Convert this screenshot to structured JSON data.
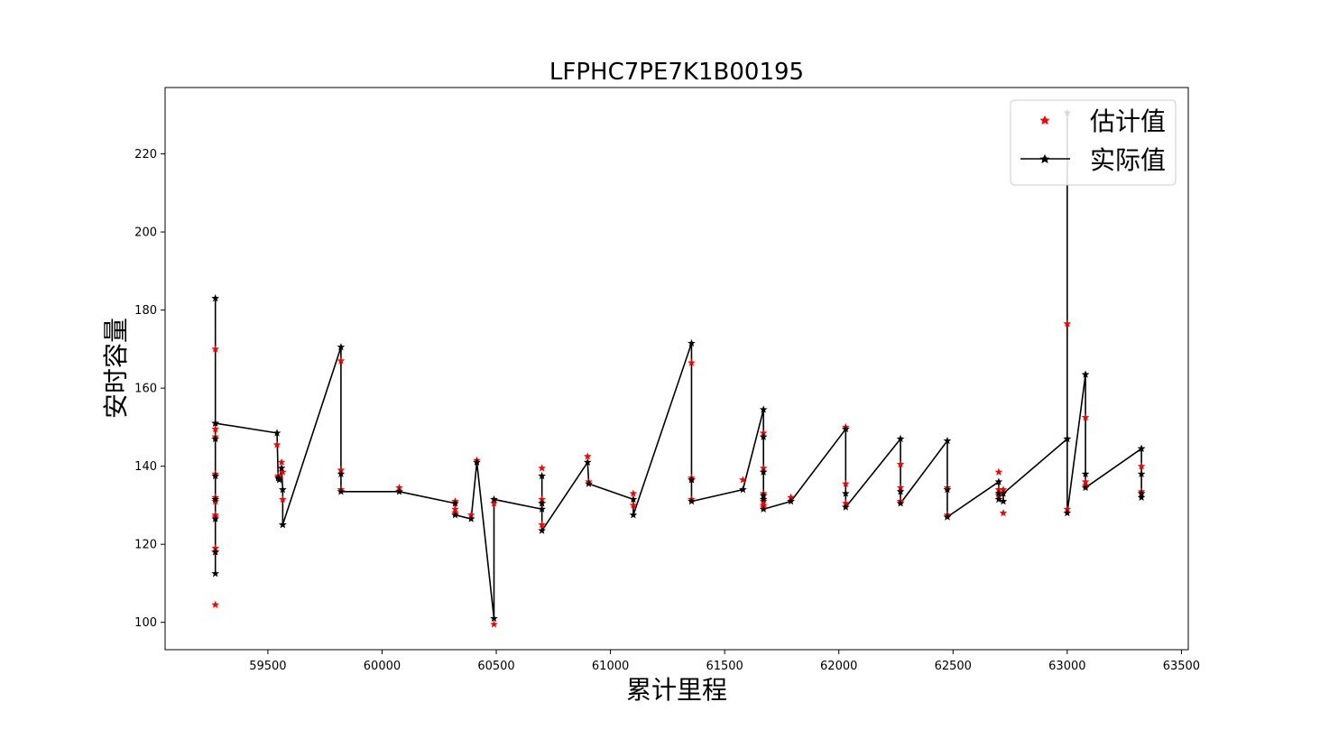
{
  "chart_data": {
    "type": "line",
    "title": "LFPHC7PE7K1B00195",
    "xlabel": "累计里程",
    "ylabel": "安时容量",
    "xlim": [
      59050,
      63530
    ],
    "ylim": [
      93,
      237
    ],
    "xticks": [
      59500,
      60000,
      60500,
      61000,
      61500,
      62000,
      62500,
      63000,
      63500
    ],
    "yticks": [
      100,
      120,
      140,
      160,
      180,
      200,
      220
    ],
    "grid": false,
    "legend": {
      "placement": "top-right",
      "entries": [
        "估计值",
        "实际值"
      ]
    },
    "colors": {
      "estimate": "#ff0000",
      "actual": "#000000"
    },
    "series": [
      {
        "name": "估计值",
        "style": "marker-only",
        "x": [
          59270,
          59270,
          59270,
          59270,
          59270,
          59270,
          59270,
          59270,
          59270,
          59270,
          59270,
          59540,
          59545,
          59550,
          59560,
          59565,
          59565,
          59565,
          59820,
          59820,
          59820,
          60075,
          60320,
          60320,
          60320,
          60390,
          60415,
          60490,
          60490,
          60700,
          60700,
          60700,
          60700,
          60900,
          60905,
          61100,
          61100,
          61355,
          61355,
          61355,
          61355,
          61580,
          61670,
          61670,
          61670,
          61670,
          61670,
          61670,
          61790,
          62030,
          62030,
          62030,
          62270,
          62270,
          62270,
          62475,
          62475,
          62475,
          62700,
          62700,
          62700,
          62720,
          62720,
          63000,
          63000,
          63000,
          63080,
          63080,
          63080,
          63325,
          63325,
          63325,
          63325
        ],
        "y": [
          170,
          149.5,
          147.5,
          138,
          132,
          127.5,
          119,
          118,
          104.5,
          127,
          131,
          145.5,
          137.5,
          137,
          141,
          138.5,
          131.5,
          125,
          167,
          139,
          134,
          134.5,
          131,
          129,
          128,
          127.5,
          141.5,
          130.5,
          99.5,
          139.5,
          131.5,
          130.5,
          125,
          142.5,
          136,
          133,
          130,
          166.5,
          137,
          131.5,
          136.5,
          136.5,
          148.5,
          139.5,
          133,
          131,
          130,
          129.5,
          132,
          150,
          135.5,
          130.5,
          140.5,
          134.5,
          131,
          134.5,
          127.5,
          127,
          138.5,
          134,
          132.5,
          134,
          128,
          176.5,
          147,
          129,
          152.5,
          136,
          135,
          144.5,
          140,
          133.5,
          133
        ]
      },
      {
        "name": "实际值",
        "style": "line-with-markers",
        "x": [
          59270,
          59270,
          59270,
          59270,
          59270,
          59270,
          59270,
          59270,
          59270,
          59540,
          59545,
          59550,
          59560,
          59565,
          59565,
          59820,
          59820,
          59820,
          60075,
          60320,
          60320,
          60390,
          60415,
          60490,
          60490,
          60700,
          60700,
          60700,
          60700,
          60900,
          60905,
          61100,
          61100,
          61355,
          61355,
          61355,
          61580,
          61670,
          61670,
          61670,
          61670,
          61670,
          61670,
          61790,
          62030,
          62030,
          62030,
          62270,
          62270,
          62270,
          62475,
          62475,
          62475,
          62700,
          62700,
          62700,
          62720,
          62720,
          63000,
          63000,
          63000,
          63080,
          63080,
          63080,
          63325,
          63325,
          63325,
          63325
        ],
        "y": [
          112.5,
          118,
          126.5,
          131.5,
          137.5,
          147,
          151,
          183,
          151,
          148.5,
          137,
          136.5,
          139.5,
          134,
          125,
          170.5,
          138,
          133.5,
          133.5,
          130.5,
          127.5,
          126.5,
          141,
          101,
          131.5,
          129,
          137.5,
          130.5,
          123.5,
          141,
          135.5,
          131.5,
          127.5,
          171.5,
          136.5,
          131,
          134,
          154.5,
          147.5,
          138.5,
          132.5,
          131.5,
          129,
          131,
          149.5,
          133,
          129.5,
          147,
          133.5,
          130.5,
          146.5,
          134,
          127,
          136,
          133,
          131.5,
          131,
          133,
          147,
          230.5,
          128,
          163.5,
          138,
          134.5,
          144.5,
          138,
          133,
          132
        ]
      }
    ]
  }
}
